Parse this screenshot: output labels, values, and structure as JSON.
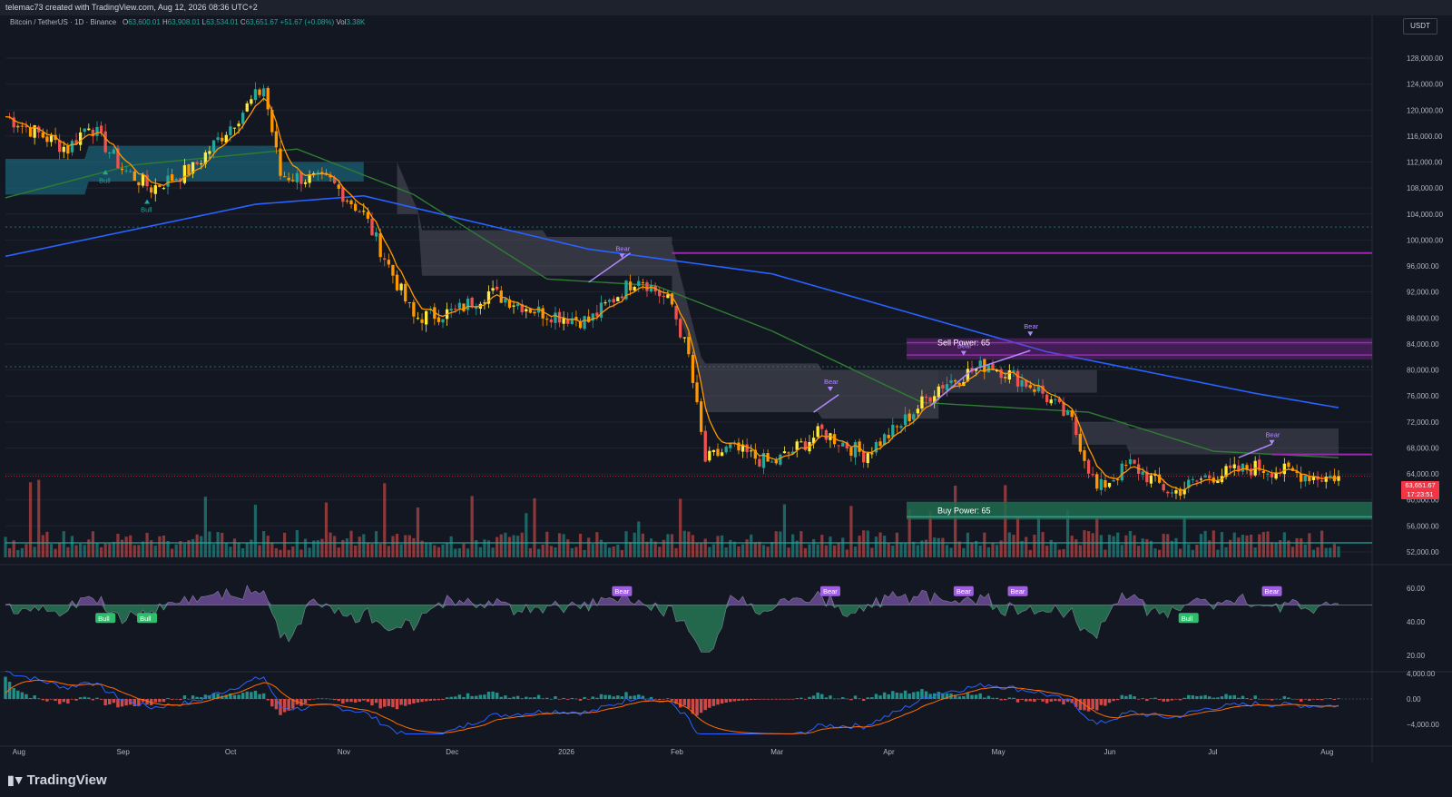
{
  "header": {
    "created": "telemac73 created with TradingView.com, Aug 12, 2026 08:36 UTC+2",
    "symbol": "Bitcoin / TetherUS · 1D · Binance",
    "o_label": "O",
    "o": "63,600.01",
    "h_label": "H",
    "h": "63,908.01",
    "l_label": "L",
    "l": "63,534.01",
    "c_label": "C",
    "c": "63,651.67",
    "change": "+51.67 (+0.08%)",
    "vol_label": "Vol",
    "vol": "3.38K",
    "unit": "USDT"
  },
  "last_price": {
    "price": "63,651.67",
    "countdown": "17:23:51"
  },
  "footer": {
    "logo": "TradingView"
  },
  "colors": {
    "bg": "#131722",
    "up": "#26a69a",
    "down": "#ef5350",
    "purple": "#9c27b0",
    "sma_blue": "#2962ff",
    "sma_green": "#2e7d32",
    "ema_orange": "#ff9800"
  },
  "chart_data": [
    {
      "type": "candlestick",
      "title": "Bitcoin / TetherUS · 1D · Binance",
      "x_tick_labels": [
        "Aug",
        "Sep",
        "Oct",
        "Nov",
        "Dec",
        "2026",
        "Feb",
        "Mar",
        "Apr",
        "May",
        "Jun",
        "Jul",
        "Aug"
      ],
      "y_tick_labels": [
        "128,000.00",
        "124,000.00",
        "120,000.00",
        "116,000.00",
        "112,000.00",
        "108,000.00",
        "104,000.00",
        "100,000.00",
        "96,000.00",
        "92,000.00",
        "88,000.00",
        "84,000.00",
        "80,000.00",
        "76,000.00",
        "72,000.00",
        "68,000.00",
        "64,000.00",
        "60,000.00",
        "56,000.00",
        "52,000.00"
      ],
      "ylim": [
        51500,
        130500
      ],
      "price_path": [
        {
          "x": 0,
          "y": 119000
        },
        {
          "x": 15,
          "y": 114000
        },
        {
          "x": 20,
          "y": 118000
        },
        {
          "x": 28,
          "y": 111000
        },
        {
          "x": 35,
          "y": 108000
        },
        {
          "x": 45,
          "y": 111000
        },
        {
          "x": 62,
          "y": 123500
        },
        {
          "x": 66,
          "y": 110000
        },
        {
          "x": 78,
          "y": 109000
        },
        {
          "x": 86,
          "y": 104000
        },
        {
          "x": 98,
          "y": 88000
        },
        {
          "x": 108,
          "y": 89000
        },
        {
          "x": 116,
          "y": 92000
        },
        {
          "x": 128,
          "y": 89000
        },
        {
          "x": 140,
          "y": 87500
        },
        {
          "x": 152,
          "y": 94500
        },
        {
          "x": 160,
          "y": 90000
        },
        {
          "x": 164,
          "y": 82000
        },
        {
          "x": 168,
          "y": 66000
        },
        {
          "x": 174,
          "y": 68000
        },
        {
          "x": 184,
          "y": 65500
        },
        {
          "x": 196,
          "y": 70500
        },
        {
          "x": 206,
          "y": 67000
        },
        {
          "x": 214,
          "y": 71000
        },
        {
          "x": 224,
          "y": 77500
        },
        {
          "x": 236,
          "y": 81000
        },
        {
          "x": 248,
          "y": 77000
        },
        {
          "x": 256,
          "y": 72000
        },
        {
          "x": 262,
          "y": 61500
        },
        {
          "x": 270,
          "y": 65500
        },
        {
          "x": 280,
          "y": 61000
        },
        {
          "x": 288,
          "y": 63500
        },
        {
          "x": 300,
          "y": 65000
        },
        {
          "x": 316,
          "y": 63500
        },
        {
          "x": 320,
          "y": 63651.67
        }
      ],
      "sma_200_path": [
        [
          0,
          97500
        ],
        [
          60,
          105500
        ],
        [
          86,
          106800
        ],
        [
          140,
          98600
        ],
        [
          184,
          94800
        ],
        [
          250,
          82800
        ],
        [
          300,
          76400
        ],
        [
          320,
          74200
        ]
      ],
      "ma_green_path": [
        [
          0,
          106500
        ],
        [
          30,
          111500
        ],
        [
          70,
          114000
        ],
        [
          98,
          107000
        ],
        [
          130,
          94000
        ],
        [
          156,
          93000
        ],
        [
          184,
          86000
        ],
        [
          220,
          75000
        ],
        [
          260,
          73500
        ],
        [
          290,
          67500
        ],
        [
          320,
          66500
        ]
      ],
      "resistance_levels": [
        {
          "label": "Sell Power: 65",
          "price_top": 84200,
          "price_bottom": 82300
        },
        {
          "level": 98000
        }
      ],
      "support_levels": [
        {
          "label": "Buy Power: 65",
          "price_top": 59300,
          "price_bottom": 57400
        }
      ],
      "signals": [
        {
          "label": "Bull",
          "x": 24,
          "y": 110500,
          "kind": "bull"
        },
        {
          "label": "Bull",
          "x": 34,
          "y": 106000,
          "kind": "bull"
        },
        {
          "label": "Bear",
          "x": 148,
          "y": 97500,
          "kind": "bear"
        },
        {
          "label": "Bear",
          "x": 198,
          "y": 77000,
          "kind": "bear"
        },
        {
          "label": "Bear",
          "x": 230,
          "y": 82500,
          "kind": "bear"
        },
        {
          "label": "Bear",
          "x": 246,
          "y": 85500,
          "kind": "bear"
        },
        {
          "label": "Bear",
          "x": 304,
          "y": 68800,
          "kind": "bear"
        }
      ],
      "last_price": 63651.67,
      "volume_label": "Vol 3.38K"
    },
    {
      "type": "area",
      "title": "",
      "y_tick_labels": [
        "60.00",
        "40.00",
        "20.00"
      ],
      "ylim": [
        15,
        75
      ],
      "midline": 50,
      "signals": [
        {
          "label": "Bull",
          "x": 24,
          "kind": "bull"
        },
        {
          "label": "Bull",
          "x": 34,
          "kind": "bull"
        },
        {
          "label": "Bear",
          "x": 148,
          "kind": "bear"
        },
        {
          "label": "Bear",
          "x": 198,
          "kind": "bear"
        },
        {
          "label": "Bear",
          "x": 230,
          "kind": "bear"
        },
        {
          "label": "Bear",
          "x": 243,
          "kind": "bear"
        },
        {
          "label": "Bull",
          "x": 284,
          "kind": "bull"
        },
        {
          "label": "Bear",
          "x": 304,
          "kind": "bear"
        }
      ]
    },
    {
      "type": "bar",
      "title": "",
      "y_tick_labels": [
        "4,000.00",
        "0.00",
        "−4,000.00"
      ],
      "ylim": [
        -6500,
        5500
      ]
    }
  ]
}
